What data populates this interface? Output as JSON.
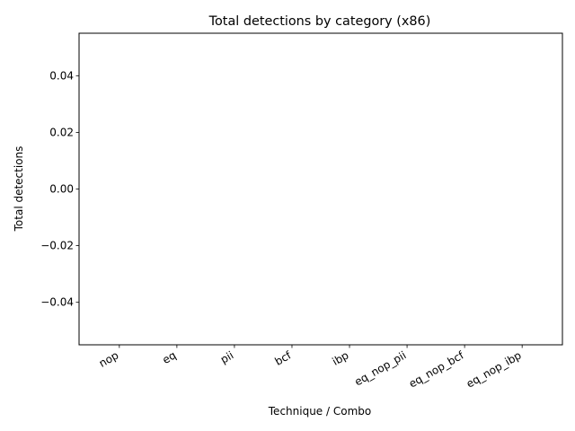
{
  "chart_data": {
    "type": "bar",
    "title": "Total detections by category (x86)",
    "xlabel": "Technique / Combo",
    "ylabel": "Total detections",
    "categories": [
      "nop",
      "eq",
      "pii",
      "bcf",
      "ibp",
      "eq_nop_pii",
      "eq_nop_bcf",
      "eq_nop_ibp"
    ],
    "values": [
      0,
      0,
      0,
      0,
      0,
      0,
      0,
      0
    ],
    "ylim": [
      -0.055,
      0.055
    ],
    "yticks": [
      -0.04,
      -0.02,
      0.0,
      0.02,
      0.04
    ],
    "ytick_labels": [
      "−0.04",
      "−0.02",
      "0.00",
      "0.02",
      "0.04"
    ],
    "grid": false,
    "legend": "none",
    "colors": {
      "bar": "#1f77b4",
      "axes": "#000000",
      "background": "#ffffff"
    }
  }
}
